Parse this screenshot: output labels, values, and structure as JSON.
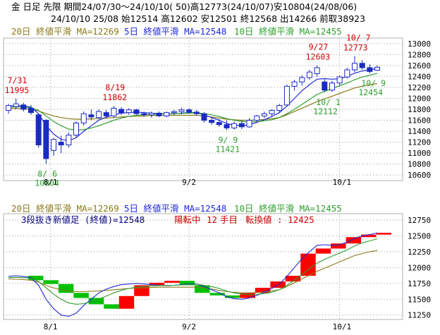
{
  "header": {
    "line1": "金 日足 先限 期間24/07/30～24/10/10( 50)高12773(24/10/07)安10804(24/08/06)",
    "line2": "24/10/10 25/08 始12514 高12602 安12501 終12568 出14266 前取38923"
  },
  "colors": {
    "bg": "#ffffff",
    "grid": "#9a9a9a",
    "ma20": "#8b7a1a",
    "ma5": "#1f2ad6",
    "ma10": "#2e9e2e",
    "candle_up": "#ffffff",
    "candle_down": "#1a2bc2",
    "candle_outline": "#1a2bc2",
    "price_ann": "#cc0000",
    "low_ann": "#2e9e2e",
    "brick_up": "#ff0000",
    "brick_down": "#00c000"
  },
  "top_panel": {
    "legend": {
      "ma20": "20日 終値平滑 MA=12269",
      "ma5": "5日 終値平滑 MA=12548",
      "ma10": "10日 終値平滑 MA=12455"
    }
  },
  "bottom_panel": {
    "legend": {
      "ma20": "20日 終値平滑 MA=12269",
      "ma5": "5日 終値平滑 MA=12548",
      "ma10": "10日 終値平滑 MA=12455"
    },
    "status": {
      "sanbun": "3段抜き新値足 (終値)=12548",
      "state": "陽転中",
      "count": "12",
      "unit": "手目",
      "reversal": "転換値 : 12425"
    }
  },
  "chart_data": [
    {
      "type": "candlestick",
      "title": "",
      "x_labels": [
        "8/1",
        "9/2",
        "10/1"
      ],
      "y_ticks": [
        10600,
        10800,
        11000,
        11200,
        11400,
        11600,
        11800,
        12000,
        12200,
        12400,
        12600,
        12800,
        13000
      ],
      "ylim": [
        10500,
        13100
      ],
      "grid": true,
      "candles": [
        {
          "o": 11780,
          "h": 11900,
          "l": 11720,
          "c": 11870
        },
        {
          "o": 11850,
          "h": 11995,
          "l": 11800,
          "c": 11900
        },
        {
          "o": 11880,
          "h": 11920,
          "l": 11760,
          "c": 11800
        },
        {
          "o": 11820,
          "h": 11880,
          "l": 11700,
          "c": 11740
        },
        {
          "o": 11700,
          "h": 11720,
          "l": 11100,
          "c": 11150
        },
        {
          "o": 11600,
          "h": 11620,
          "l": 10804,
          "c": 10900
        },
        {
          "o": 11050,
          "h": 11280,
          "l": 10950,
          "c": 11250
        },
        {
          "o": 11200,
          "h": 11320,
          "l": 11000,
          "c": 11150
        },
        {
          "o": 11150,
          "h": 11380,
          "l": 11100,
          "c": 11330
        },
        {
          "o": 11330,
          "h": 11580,
          "l": 11280,
          "c": 11550
        },
        {
          "o": 11550,
          "h": 11760,
          "l": 11500,
          "c": 11720
        },
        {
          "o": 11700,
          "h": 11800,
          "l": 11600,
          "c": 11660
        },
        {
          "o": 11650,
          "h": 11800,
          "l": 11620,
          "c": 11760
        },
        {
          "o": 11740,
          "h": 11790,
          "l": 11640,
          "c": 11680
        },
        {
          "o": 11680,
          "h": 11862,
          "l": 11640,
          "c": 11820
        },
        {
          "o": 11800,
          "h": 11840,
          "l": 11700,
          "c": 11740
        },
        {
          "o": 11740,
          "h": 11820,
          "l": 11700,
          "c": 11790
        },
        {
          "o": 11790,
          "h": 11810,
          "l": 11700,
          "c": 11720
        },
        {
          "o": 11720,
          "h": 11760,
          "l": 11660,
          "c": 11700
        },
        {
          "o": 11700,
          "h": 11760,
          "l": 11650,
          "c": 11730
        },
        {
          "o": 11730,
          "h": 11760,
          "l": 11660,
          "c": 11680
        },
        {
          "o": 11680,
          "h": 11760,
          "l": 11650,
          "c": 11740
        },
        {
          "o": 11740,
          "h": 11790,
          "l": 11690,
          "c": 11760
        },
        {
          "o": 11760,
          "h": 11830,
          "l": 11710,
          "c": 11790
        },
        {
          "o": 11790,
          "h": 11820,
          "l": 11720,
          "c": 11750
        },
        {
          "o": 11750,
          "h": 11790,
          "l": 11690,
          "c": 11720
        },
        {
          "o": 11720,
          "h": 11750,
          "l": 11560,
          "c": 11600
        },
        {
          "o": 11600,
          "h": 11640,
          "l": 11520,
          "c": 11560
        },
        {
          "o": 11560,
          "h": 11620,
          "l": 11480,
          "c": 11520
        },
        {
          "o": 11520,
          "h": 11600,
          "l": 11421,
          "c": 11460
        },
        {
          "o": 11460,
          "h": 11580,
          "l": 11430,
          "c": 11540
        },
        {
          "o": 11540,
          "h": 11600,
          "l": 11440,
          "c": 11480
        },
        {
          "o": 11480,
          "h": 11640,
          "l": 11460,
          "c": 11600
        },
        {
          "o": 11600,
          "h": 11700,
          "l": 11560,
          "c": 11680
        },
        {
          "o": 11680,
          "h": 11760,
          "l": 11640,
          "c": 11720
        },
        {
          "o": 11720,
          "h": 11800,
          "l": 11660,
          "c": 11780
        },
        {
          "o": 11780,
          "h": 11900,
          "l": 11740,
          "c": 11870
        },
        {
          "o": 11880,
          "h": 12250,
          "l": 11850,
          "c": 12220
        },
        {
          "o": 12220,
          "h": 12340,
          "l": 12140,
          "c": 12300
        },
        {
          "o": 12300,
          "h": 12420,
          "l": 12230,
          "c": 12380
        },
        {
          "o": 12380,
          "h": 12520,
          "l": 12340,
          "c": 12480
        },
        {
          "o": 12450,
          "h": 12603,
          "l": 12390,
          "c": 12560
        },
        {
          "o": 12300,
          "h": 12350,
          "l": 12112,
          "c": 12150
        },
        {
          "o": 12150,
          "h": 12320,
          "l": 12120,
          "c": 12280
        },
        {
          "o": 12280,
          "h": 12420,
          "l": 12240,
          "c": 12390
        },
        {
          "o": 12390,
          "h": 12560,
          "l": 12360,
          "c": 12520
        },
        {
          "o": 12520,
          "h": 12773,
          "l": 12480,
          "c": 12640
        },
        {
          "o": 12640,
          "h": 12700,
          "l": 12520,
          "c": 12560
        },
        {
          "o": 12560,
          "h": 12620,
          "l": 12454,
          "c": 12490
        },
        {
          "o": 12514,
          "h": 12602,
          "l": 12501,
          "c": 12568
        }
      ],
      "series": [
        {
          "name": "20日 終値平滑",
          "values": [
            11820,
            11815,
            11810,
            11800,
            11770,
            11720,
            11680,
            11650,
            11630,
            11620,
            11620,
            11625,
            11630,
            11640,
            11650,
            11660,
            11670,
            11675,
            11680,
            11685,
            11690,
            11690,
            11690,
            11690,
            11690,
            11690,
            11680,
            11660,
            11640,
            11620,
            11610,
            11600,
            11600,
            11605,
            11615,
            11630,
            11650,
            11700,
            11760,
            11820,
            11880,
            11940,
            11990,
            12040,
            12090,
            12140,
            12190,
            12220,
            12250,
            12269
          ]
        },
        {
          "name": "5日 終値平滑",
          "values": [
            11860,
            11870,
            11860,
            11840,
            11720,
            11500,
            11350,
            11250,
            11230,
            11280,
            11400,
            11500,
            11600,
            11660,
            11700,
            11730,
            11740,
            11750,
            11740,
            11730,
            11720,
            11715,
            11720,
            11730,
            11740,
            11740,
            11700,
            11650,
            11600,
            11540,
            11510,
            11500,
            11520,
            11560,
            11610,
            11670,
            11740,
            11860,
            12000,
            12140,
            12250,
            12350,
            12360,
            12350,
            12360,
            12400,
            12460,
            12500,
            12520,
            12548
          ]
        },
        {
          "name": "10日 終値平滑",
          "values": [
            11840,
            11845,
            11840,
            11830,
            11780,
            11680,
            11580,
            11500,
            11440,
            11420,
            11430,
            11460,
            11500,
            11550,
            11600,
            11640,
            11670,
            11690,
            11700,
            11710,
            11715,
            11720,
            11720,
            11725,
            11730,
            11735,
            11720,
            11700,
            11670,
            11630,
            11600,
            11580,
            11570,
            11575,
            11590,
            11610,
            11650,
            11720,
            11800,
            11890,
            11980,
            12070,
            12130,
            12180,
            12230,
            12280,
            12340,
            12390,
            12420,
            12455
          ]
        }
      ],
      "annotations": {
        "highs": [
          {
            "date": "7/31",
            "value": "11995"
          },
          {
            "date": "8/19",
            "value": "11862"
          },
          {
            "date": "9/27",
            "value": "12603"
          },
          {
            "date": "10/ 7",
            "value": "12773"
          }
        ],
        "lows": [
          {
            "date": "8/ 6",
            "value": "10804"
          },
          {
            "date": "9/ 9",
            "value": "11421"
          },
          {
            "date": "10/ 1",
            "value": "12112"
          },
          {
            "date": "10/ 9",
            "value": "12454"
          }
        ]
      }
    },
    {
      "type": "bar",
      "title": "3段抜き新値足 (終値)",
      "x_labels": [
        "8/1",
        "9/2",
        "10/1"
      ],
      "y_ticks": [
        11250,
        11500,
        11750,
        12000,
        12250,
        12500,
        12750
      ],
      "ylim": [
        11180,
        12850
      ],
      "grid": true,
      "bricks": [
        {
          "dir": "down",
          "top": 11870,
          "bottom": 11800
        },
        {
          "dir": "down",
          "top": 11800,
          "bottom": 11740
        },
        {
          "dir": "down",
          "top": 11740,
          "bottom": 11600
        },
        {
          "dir": "down",
          "top": 11600,
          "bottom": 11520
        },
        {
          "dir": "down",
          "top": 11520,
          "bottom": 11420
        },
        {
          "dir": "down",
          "top": 11420,
          "bottom": 11350
        },
        {
          "dir": "up",
          "top": 11550,
          "bottom": 11350
        },
        {
          "dir": "up",
          "top": 11720,
          "bottom": 11550
        },
        {
          "dir": "up",
          "top": 11760,
          "bottom": 11720
        },
        {
          "dir": "up",
          "top": 11790,
          "bottom": 11760
        },
        {
          "dir": "down",
          "top": 11790,
          "bottom": 11720
        },
        {
          "dir": "down",
          "top": 11720,
          "bottom": 11600
        },
        {
          "dir": "down",
          "top": 11600,
          "bottom": 11560
        },
        {
          "dir": "down",
          "top": 11560,
          "bottom": 11520
        },
        {
          "dir": "up",
          "top": 11600,
          "bottom": 11520
        },
        {
          "dir": "up",
          "top": 11680,
          "bottom": 11600
        },
        {
          "dir": "up",
          "top": 11780,
          "bottom": 11680
        },
        {
          "dir": "up",
          "top": 11870,
          "bottom": 11780
        },
        {
          "dir": "up",
          "top": 12220,
          "bottom": 11870
        },
        {
          "dir": "up",
          "top": 12300,
          "bottom": 12220
        },
        {
          "dir": "up",
          "top": 12380,
          "bottom": 12300
        },
        {
          "dir": "up",
          "top": 12480,
          "bottom": 12380
        },
        {
          "dir": "up",
          "top": 12520,
          "bottom": 12480
        },
        {
          "dir": "up",
          "top": 12548,
          "bottom": 12520
        }
      ]
    }
  ]
}
